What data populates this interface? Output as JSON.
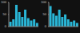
{
  "chart_data": [
    {
      "type": "bar",
      "categories": [
        null,
        null,
        null,
        null,
        null,
        null,
        null,
        null,
        null,
        null
      ],
      "values": [
        20,
        30,
        90,
        60,
        40,
        70,
        35,
        25,
        30,
        15
      ],
      "color": "#29b6d6",
      "ylim": [
        0,
        100
      ],
      "yticks": [
        0,
        50,
        100
      ],
      "grid": false
    },
    {
      "type": "bar",
      "categories": [
        null,
        null,
        null,
        null,
        null,
        null,
        null,
        null,
        null,
        null
      ],
      "values": [
        85,
        55,
        45,
        70,
        40,
        50,
        30,
        20,
        25,
        15
      ],
      "color": "#29b6d6",
      "ylim": [
        0,
        100
      ],
      "yticks": [
        0,
        50,
        100
      ],
      "grid": false
    }
  ]
}
